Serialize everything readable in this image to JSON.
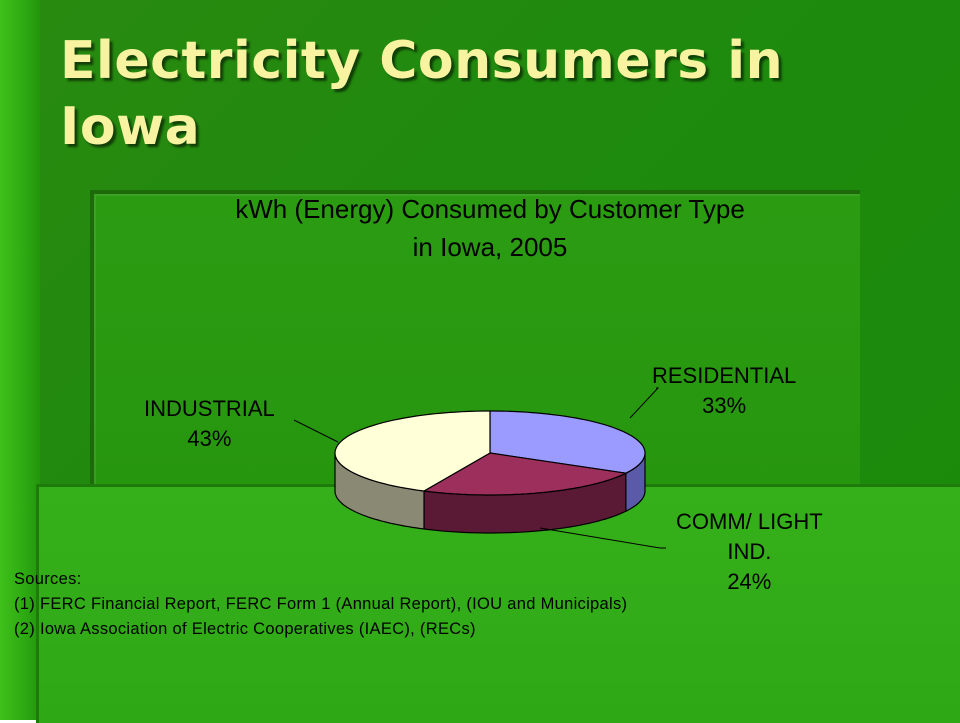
{
  "slide": {
    "title": "Electricity Consumers in Iowa"
  },
  "chart_data": {
    "type": "pie",
    "title_line1": "kWh (Energy) Consumed by Customer Type",
    "title_line2": "in Iowa, 2005",
    "slices": [
      {
        "name": "RESIDENTIAL",
        "value": 33,
        "percent_label": "33%",
        "color": "#9b9bff",
        "side_color": "#5a5aa8"
      },
      {
        "name": "COMM/ LIGHT IND.",
        "name_line1": "COMM/ LIGHT",
        "name_line2": "IND.",
        "value": 24,
        "percent_label": "24%",
        "color": "#9c2f5c",
        "side_color": "#5a1a36"
      },
      {
        "name": "INDUSTRIAL",
        "value": 43,
        "percent_label": "43%",
        "color": "#ffffd8",
        "side_color": "#8a8a74"
      }
    ]
  },
  "sources": {
    "heading": "Sources:",
    "line1": "(1) FERC Financial Report, FERC Form 1 (Annual Report), (IOU and Municipals)",
    "line2": "(2) Iowa Association of Electric Cooperatives (IAEC), (RECs)"
  },
  "colors": {
    "title_text": "#f7f3a0",
    "background": "#1f8a0e"
  }
}
